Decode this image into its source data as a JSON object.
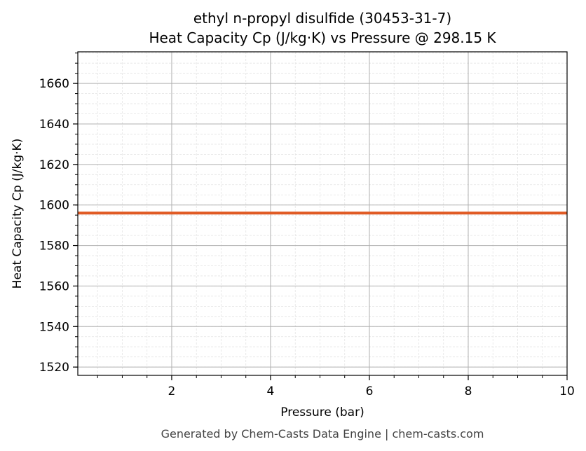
{
  "chart_data": {
    "type": "line",
    "title_line1": "ethyl n-propyl disulfide (30453-31-7)",
    "title_line2": "Heat Capacity Cp (J/kg·K) vs Pressure @ 298.15 K",
    "xlabel": "Pressure (bar)",
    "ylabel": "Heat Capacity Cp (J/kg·K)",
    "xlim": [
      0.1,
      10
    ],
    "ylim": [
      1515.9,
      1675.6
    ],
    "xticks": [
      2,
      4,
      6,
      8,
      10
    ],
    "yticks": [
      1520,
      1540,
      1560,
      1580,
      1600,
      1620,
      1640,
      1660
    ],
    "x_minor_step": 0.5,
    "y_minor_step": 5,
    "grid": true,
    "series": [
      {
        "color": "#e05a24",
        "x": [
          0.1,
          10
        ],
        "y": [
          1596,
          1596
        ]
      }
    ]
  },
  "footer": "Generated by Chem-Casts Data Engine | chem-casts.com"
}
